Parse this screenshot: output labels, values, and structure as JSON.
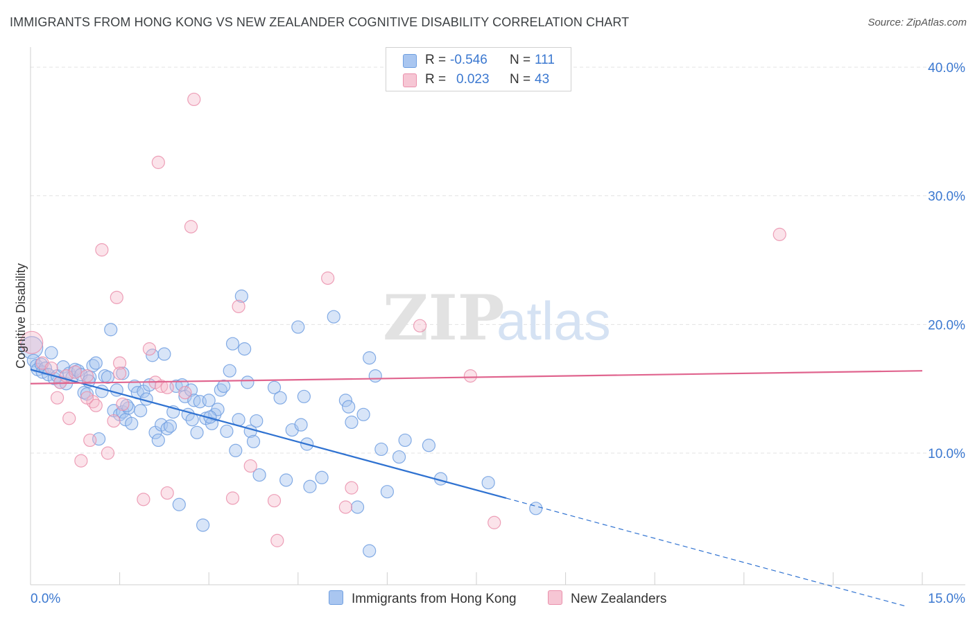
{
  "title": "IMMIGRANTS FROM HONG KONG VS NEW ZEALANDER COGNITIVE DISABILITY CORRELATION CHART",
  "source": "Source: ZipAtlas.com",
  "watermark": {
    "zip": "ZIP",
    "atlas": "atlas"
  },
  "colors": {
    "blue_fill": "#a9c6f0",
    "blue_stroke": "#6e9ee0",
    "blue_line": "#2f72d1",
    "pink_fill": "#f6b8cb",
    "pink_stroke": "#ea8fab",
    "pink_line": "#e0648e",
    "tick_label": "#3b78d0",
    "grid": "#e3e3e3"
  },
  "stats_legend": {
    "rows": [
      {
        "r_label": "R =",
        "r_value": "-0.546",
        "n_label": "N =",
        "n_value": "111"
      },
      {
        "r_label": "R =",
        "r_value": "0.023",
        "n_label": "N =",
        "n_value": "43"
      }
    ]
  },
  "legend": {
    "series1": "Immigrants from Hong Kong",
    "series2": "New Zealanders"
  },
  "chart_data": {
    "type": "scatter",
    "ylabel": "Cognitive Disability",
    "xlabel": "",
    "xlim": [
      0,
      15
    ],
    "ylim": [
      0,
      40
    ],
    "x_tick_labels": [
      "0.0%",
      "15.0%"
    ],
    "y_ticks": [
      10,
      20,
      30,
      40
    ],
    "y_tick_labels": [
      "10.0%",
      "20.0%",
      "30.0%",
      "40.0%"
    ],
    "grid": true,
    "series": [
      {
        "name": "Immigrants from Hong Kong",
        "color": "#6e9ee0",
        "trend": {
          "x0": 0,
          "y0": 16.5,
          "x1": 8.0,
          "y1": 6.5,
          "dashed_to_x": 14.7
        },
        "points": [
          [
            0.02,
            18.2
          ],
          [
            0.05,
            17.2
          ],
          [
            0.1,
            16.8
          ],
          [
            0.12,
            16.5
          ],
          [
            0.18,
            16.9
          ],
          [
            0.2,
            16.3
          ],
          [
            0.25,
            16.6
          ],
          [
            0.3,
            16.1
          ],
          [
            0.35,
            17.8
          ],
          [
            0.4,
            15.8
          ],
          [
            0.45,
            16.0
          ],
          [
            0.5,
            15.5
          ],
          [
            0.55,
            16.7
          ],
          [
            0.6,
            15.4
          ],
          [
            0.65,
            16.2
          ],
          [
            0.7,
            15.9
          ],
          [
            0.75,
            16.5
          ],
          [
            0.8,
            16.4
          ],
          [
            0.85,
            16.1
          ],
          [
            0.9,
            14.7
          ],
          [
            0.95,
            14.6
          ],
          [
            1.0,
            15.9
          ],
          [
            1.05,
            16.8
          ],
          [
            1.1,
            17.0
          ],
          [
            1.15,
            11.1
          ],
          [
            1.2,
            14.8
          ],
          [
            1.25,
            16.0
          ],
          [
            1.3,
            15.9
          ],
          [
            1.35,
            19.6
          ],
          [
            1.4,
            13.3
          ],
          [
            1.45,
            14.9
          ],
          [
            1.5,
            13.0
          ],
          [
            1.55,
            13.2
          ],
          [
            1.6,
            12.6
          ],
          [
            1.65,
            13.5
          ],
          [
            1.7,
            12.3
          ],
          [
            1.75,
            15.2
          ],
          [
            1.8,
            14.7
          ],
          [
            1.85,
            13.3
          ],
          [
            1.9,
            14.8
          ],
          [
            1.95,
            14.2
          ],
          [
            2.0,
            15.3
          ],
          [
            2.05,
            17.6
          ],
          [
            2.1,
            11.6
          ],
          [
            2.15,
            11.0
          ],
          [
            2.2,
            12.2
          ],
          [
            2.25,
            17.7
          ],
          [
            2.3,
            11.9
          ],
          [
            2.35,
            12.1
          ],
          [
            2.4,
            13.2
          ],
          [
            2.45,
            15.2
          ],
          [
            2.5,
            6.0
          ],
          [
            2.55,
            15.3
          ],
          [
            2.6,
            14.4
          ],
          [
            2.65,
            13.0
          ],
          [
            2.7,
            14.9
          ],
          [
            2.75,
            14.1
          ],
          [
            2.8,
            11.6
          ],
          [
            2.85,
            14.0
          ],
          [
            2.9,
            4.4
          ],
          [
            2.95,
            12.7
          ],
          [
            3.0,
            14.1
          ],
          [
            3.05,
            12.3
          ],
          [
            3.1,
            13.0
          ],
          [
            3.15,
            13.4
          ],
          [
            3.2,
            14.9
          ],
          [
            3.25,
            15.2
          ],
          [
            3.3,
            11.7
          ],
          [
            3.35,
            16.4
          ],
          [
            3.4,
            18.5
          ],
          [
            3.45,
            10.2
          ],
          [
            3.5,
            12.6
          ],
          [
            3.55,
            22.2
          ],
          [
            3.6,
            18.1
          ],
          [
            3.65,
            15.5
          ],
          [
            3.7,
            11.7
          ],
          [
            3.75,
            10.9
          ],
          [
            3.8,
            12.5
          ],
          [
            3.85,
            8.3
          ],
          [
            4.1,
            15.1
          ],
          [
            4.2,
            14.3
          ],
          [
            4.3,
            7.9
          ],
          [
            4.4,
            11.8
          ],
          [
            4.5,
            19.8
          ],
          [
            4.55,
            12.2
          ],
          [
            4.6,
            14.4
          ],
          [
            4.65,
            10.7
          ],
          [
            4.7,
            7.4
          ],
          [
            4.9,
            8.1
          ],
          [
            5.1,
            20.6
          ],
          [
            5.3,
            14.1
          ],
          [
            5.35,
            13.6
          ],
          [
            5.4,
            12.4
          ],
          [
            5.5,
            5.8
          ],
          [
            5.6,
            13.0
          ],
          [
            5.7,
            17.4
          ],
          [
            5.8,
            16.0
          ],
          [
            5.9,
            10.3
          ],
          [
            6.0,
            7.0
          ],
          [
            6.2,
            9.7
          ],
          [
            6.3,
            11.0
          ],
          [
            6.7,
            10.6
          ],
          [
            6.9,
            8.0
          ],
          [
            7.7,
            7.7
          ],
          [
            8.5,
            5.7
          ],
          [
            5.7,
            2.4
          ],
          [
            1.55,
            16.2
          ],
          [
            0.98,
            15.6
          ],
          [
            2.72,
            12.6
          ],
          [
            3.02,
            12.8
          ],
          [
            1.62,
            13.7
          ]
        ]
      },
      {
        "name": "New Zealanders",
        "color": "#ea8fab",
        "trend": {
          "x0": 0,
          "y0": 15.4,
          "x1": 15,
          "y1": 16.4
        },
        "points": [
          [
            0.02,
            18.6
          ],
          [
            0.2,
            17.0
          ],
          [
            0.35,
            16.6
          ],
          [
            0.45,
            14.3
          ],
          [
            0.5,
            15.5
          ],
          [
            0.6,
            16.0
          ],
          [
            0.65,
            12.7
          ],
          [
            0.75,
            16.3
          ],
          [
            0.85,
            9.4
          ],
          [
            0.95,
            16.0
          ],
          [
            1.0,
            11.0
          ],
          [
            1.05,
            14.0
          ],
          [
            1.1,
            13.7
          ],
          [
            1.2,
            25.8
          ],
          [
            1.3,
            10.0
          ],
          [
            1.4,
            12.5
          ],
          [
            1.45,
            22.1
          ],
          [
            1.5,
            17.0
          ],
          [
            1.55,
            13.8
          ],
          [
            1.9,
            6.4
          ],
          [
            2.0,
            18.1
          ],
          [
            2.1,
            15.5
          ],
          [
            2.15,
            32.6
          ],
          [
            2.2,
            15.2
          ],
          [
            2.3,
            6.9
          ],
          [
            2.6,
            14.7
          ],
          [
            2.7,
            27.6
          ],
          [
            2.75,
            37.5
          ],
          [
            3.4,
            6.5
          ],
          [
            3.5,
            21.4
          ],
          [
            3.7,
            9.0
          ],
          [
            4.1,
            6.3
          ],
          [
            4.15,
            3.2
          ],
          [
            5.0,
            23.6
          ],
          [
            5.3,
            5.8
          ],
          [
            5.4,
            7.3
          ],
          [
            6.55,
            19.9
          ],
          [
            7.4,
            16.0
          ],
          [
            7.8,
            4.6
          ],
          [
            12.6,
            27.0
          ],
          [
            0.95,
            14.3
          ],
          [
            1.5,
            16.2
          ],
          [
            2.3,
            15.1
          ]
        ]
      }
    ]
  }
}
